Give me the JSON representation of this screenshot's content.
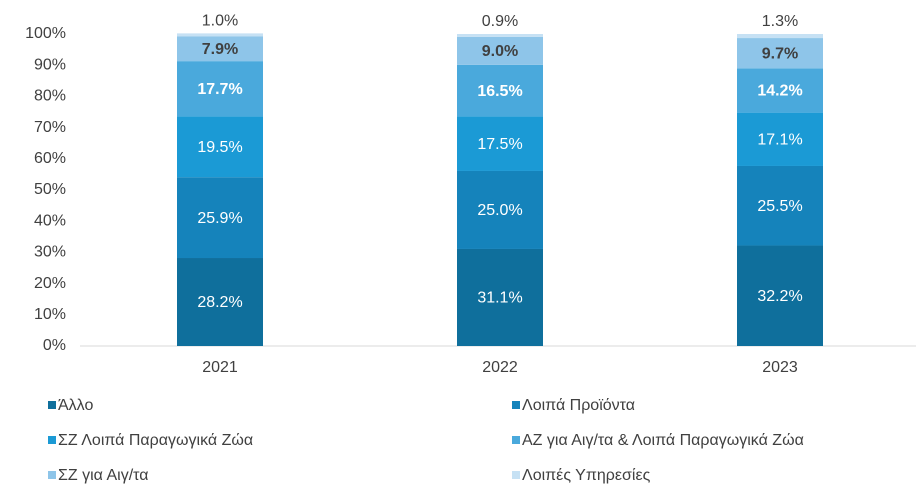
{
  "chart_data": {
    "type": "stacked_bar",
    "categories": [
      "2021",
      "2022",
      "2023"
    ],
    "series": [
      {
        "name": "Άλλο",
        "color": "#0f6f9c",
        "values": [
          28.2,
          31.1,
          32.2
        ],
        "value_labels": [
          "28.2%",
          "31.1%",
          "32.2%"
        ]
      },
      {
        "name": "Λοιπά Προϊόντα",
        "color": "#1583bb",
        "values": [
          25.9,
          25.0,
          25.5
        ],
        "value_labels": [
          "25.9%",
          "25.0%",
          "25.5%"
        ]
      },
      {
        "name": "ΣΖ  Λοιπά Παραγωγικά Ζώα",
        "color": "#1b9ad5",
        "values": [
          19.5,
          17.5,
          17.1
        ],
        "value_labels": [
          "19.5%",
          "17.5%",
          "17.1%"
        ]
      },
      {
        "name": "ΑΖ για Αιγ/τα  & Λοιπά Παραγωγικά Ζώα",
        "color": "#4aa9dc",
        "values": [
          17.7,
          16.5,
          14.2
        ],
        "value_labels": [
          "17.7%",
          "16.5%",
          "14.2%"
        ]
      },
      {
        "name": "ΣΖ  για Αιγ/τα",
        "color": "#8ec5e9",
        "values": [
          7.9,
          9.0,
          9.7
        ],
        "value_labels": [
          "7.9%",
          "9.0%",
          "9.7%"
        ]
      },
      {
        "name": "Λοιπές Υπηρεσίες",
        "color": "#c6e1f4",
        "values": [
          1.0,
          0.9,
          1.3
        ],
        "value_labels": [
          "1.0%",
          "0.9%",
          "1.3%"
        ]
      }
    ],
    "ylim": [
      0,
      100
    ],
    "yticks": [
      {
        "value": 0,
        "label": "0%"
      },
      {
        "value": 10,
        "label": "10%"
      },
      {
        "value": 20,
        "label": "20%"
      },
      {
        "value": 30,
        "label": "30%"
      },
      {
        "value": 40,
        "label": "40%"
      },
      {
        "value": 50,
        "label": "50%"
      },
      {
        "value": 60,
        "label": "60%"
      },
      {
        "value": 70,
        "label": "70%"
      },
      {
        "value": 80,
        "label": "80%"
      },
      {
        "value": 90,
        "label": "90%"
      },
      {
        "value": 100,
        "label": "100%"
      }
    ],
    "grid": false
  }
}
